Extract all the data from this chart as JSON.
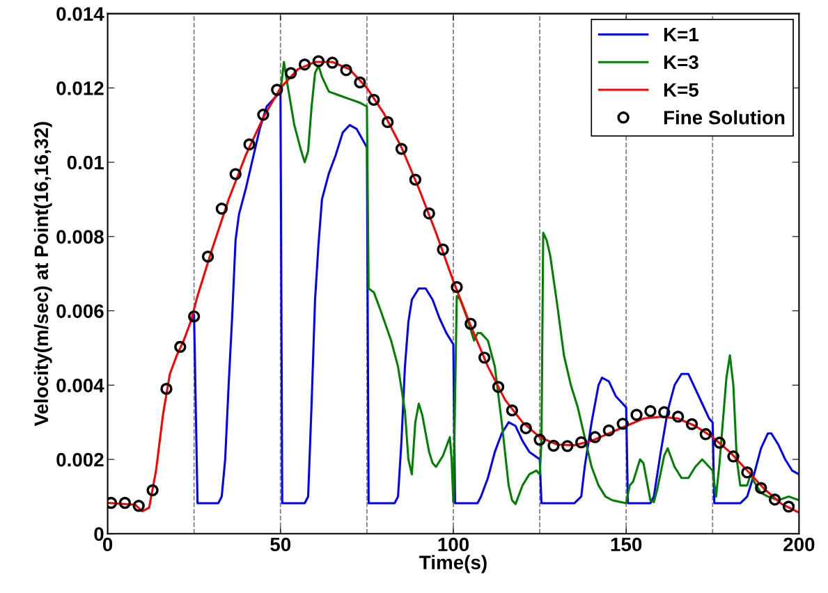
{
  "chart_data": {
    "type": "line",
    "xlabel": "Time(s)",
    "ylabel": "Velocity(m/sec) at Point(16,16,32)",
    "xlim": [
      0,
      200
    ],
    "ylim": [
      0,
      0.014
    ],
    "xticks": [
      0,
      50,
      100,
      150,
      200
    ],
    "yticks": [
      0,
      0.002,
      0.004,
      0.006,
      0.008,
      0.01,
      0.012,
      0.014
    ],
    "grid": false,
    "legend": "top right",
    "line_style": "solid",
    "ref_lines": [
      {
        "axis": "x",
        "value": 25,
        "color": "#808080",
        "line_style": "dashed"
      },
      {
        "axis": "x",
        "value": 50,
        "color": "#808080",
        "line_style": "dashed"
      },
      {
        "axis": "x",
        "value": 75,
        "color": "#808080",
        "line_style": "dashed"
      },
      {
        "axis": "x",
        "value": 100,
        "color": "#808080",
        "line_style": "dashed"
      },
      {
        "axis": "x",
        "value": 125,
        "color": "#808080",
        "line_style": "dashed"
      },
      {
        "axis": "x",
        "value": 150,
        "color": "#808080",
        "line_style": "dashed"
      },
      {
        "axis": "x",
        "value": 175,
        "color": "#808080",
        "line_style": "dashed"
      }
    ],
    "series": [
      {
        "name": "K=1",
        "color": "#0000ff",
        "x": [
          24,
          25,
          26,
          32,
          33,
          34,
          35,
          36,
          37,
          38,
          40,
          42,
          44,
          46,
          48,
          50,
          50.5,
          57,
          58,
          59,
          60,
          61,
          62,
          64,
          66,
          68,
          70,
          72,
          75,
          75.5,
          83,
          84,
          85,
          86,
          87,
          88,
          90,
          92,
          94,
          96,
          98,
          100,
          100.5,
          107,
          108,
          110,
          112,
          114,
          116,
          118,
          120,
          122,
          125,
          125.5,
          135,
          137,
          138,
          140,
          142,
          143,
          145,
          147,
          149,
          150,
          150.5,
          157,
          158,
          160,
          162,
          164,
          166,
          168,
          170,
          172,
          174,
          175,
          175.5,
          183,
          185,
          187,
          189,
          191,
          192,
          194,
          196,
          198,
          200
        ],
        "values": [
          0.0057,
          0.0059,
          0.00082,
          0.00082,
          0.001,
          0.002,
          0.004,
          0.0058,
          0.0079,
          0.0086,
          0.0093,
          0.0101,
          0.0109,
          0.0115,
          0.0117,
          0.0119,
          0.00082,
          0.00082,
          0.001,
          0.0035,
          0.0063,
          0.0078,
          0.009,
          0.0097,
          0.0102,
          0.0108,
          0.011,
          0.0109,
          0.0104,
          0.00082,
          0.00082,
          0.001,
          0.0025,
          0.0045,
          0.0057,
          0.0063,
          0.0066,
          0.0066,
          0.0063,
          0.0058,
          0.0054,
          0.0051,
          0.00082,
          0.00082,
          0.001,
          0.0015,
          0.0022,
          0.0027,
          0.003,
          0.0029,
          0.0025,
          0.0022,
          0.002,
          0.00082,
          0.00082,
          0.001,
          0.0018,
          0.003,
          0.004,
          0.0042,
          0.0041,
          0.0037,
          0.0035,
          0.0034,
          0.00082,
          0.00082,
          0.001,
          0.0022,
          0.0033,
          0.004,
          0.0043,
          0.0043,
          0.0039,
          0.0035,
          0.0031,
          0.003,
          0.00082,
          0.00082,
          0.001,
          0.0016,
          0.0023,
          0.0027,
          0.0027,
          0.0024,
          0.002,
          0.0017,
          0.0016
        ]
      },
      {
        "name": "K=3",
        "color": "#008000",
        "x": [
          50,
          51,
          52,
          54,
          56,
          57,
          58,
          59,
          60,
          61,
          62,
          64,
          67,
          70,
          73,
          75,
          75.5,
          77,
          79,
          82,
          84,
          86,
          87,
          88,
          89,
          90,
          91,
          93,
          94,
          95,
          97,
          99,
          99.5,
          100,
          101,
          102,
          104,
          106,
          107,
          108,
          110,
          112,
          114,
          116,
          117,
          118,
          120,
          122,
          124,
          125,
          125.5,
          126,
          127,
          128,
          130,
          132,
          134,
          136,
          138,
          140,
          142,
          144,
          146,
          150,
          151,
          152,
          154,
          155,
          157,
          158,
          159,
          161,
          162,
          164,
          166,
          168,
          170,
          172,
          174,
          175,
          176,
          177,
          179,
          180,
          181,
          182,
          183,
          185,
          186,
          187,
          189,
          191,
          194,
          197,
          200
        ],
        "values": [
          0.0119,
          0.0127,
          0.0121,
          0.011,
          0.0103,
          0.01,
          0.0103,
          0.0115,
          0.0124,
          0.0126,
          0.0123,
          0.0119,
          0.0118,
          0.0117,
          0.0116,
          0.0115,
          0.0066,
          0.0065,
          0.006,
          0.0052,
          0.0045,
          0.0033,
          0.002,
          0.0016,
          0.003,
          0.0035,
          0.0032,
          0.0022,
          0.0019,
          0.0018,
          0.0021,
          0.0026,
          0.002,
          0.00085,
          0.0064,
          0.0063,
          0.0058,
          0.0052,
          0.0054,
          0.0054,
          0.0052,
          0.0045,
          0.003,
          0.0013,
          0.0009,
          0.0008,
          0.0013,
          0.0016,
          0.0017,
          0.0016,
          0.0025,
          0.0081,
          0.0079,
          0.0075,
          0.0062,
          0.0048,
          0.004,
          0.0034,
          0.0026,
          0.0018,
          0.0013,
          0.001,
          0.0009,
          0.00082,
          0.0013,
          0.0014,
          0.002,
          0.0019,
          0.0009,
          0.00085,
          0.0012,
          0.0021,
          0.0023,
          0.0018,
          0.0015,
          0.0015,
          0.0018,
          0.002,
          0.0018,
          0.0017,
          0.001,
          0.0019,
          0.0042,
          0.0048,
          0.004,
          0.002,
          0.0013,
          0.0013,
          0.0016,
          0.0014,
          0.0011,
          0.001,
          0.0009,
          0.001,
          0.0009
        ]
      },
      {
        "name": "K=5",
        "color": "#ff0000",
        "x": [
          0,
          8,
          10,
          12,
          14,
          16,
          18,
          20,
          22,
          24,
          26,
          30,
          35,
          40,
          45,
          50,
          55,
          60,
          65,
          70,
          75,
          80,
          85,
          90,
          95,
          100,
          105,
          110,
          115,
          120,
          125,
          130,
          135,
          140,
          145,
          150,
          155,
          160,
          165,
          170,
          175,
          180,
          185,
          190,
          195,
          200
        ],
        "values": [
          0.00083,
          0.00078,
          0.0006,
          0.0007,
          0.0017,
          0.0032,
          0.0043,
          0.0048,
          0.0052,
          0.0057,
          0.0064,
          0.0076,
          0.009,
          0.0102,
          0.0112,
          0.012,
          0.0125,
          0.0127,
          0.0127,
          0.0125,
          0.012,
          0.0113,
          0.0104,
          0.0093,
          0.0081,
          0.0068,
          0.0056,
          0.0045,
          0.0036,
          0.003,
          0.0026,
          0.0024,
          0.00238,
          0.0025,
          0.0027,
          0.0029,
          0.0031,
          0.00315,
          0.0031,
          0.0029,
          0.0026,
          0.0022,
          0.0017,
          0.0012,
          0.0008,
          0.00057
        ]
      },
      {
        "name": "Fine Solution",
        "type": "scatter",
        "marker": "circle",
        "color": "#000000",
        "x": [
          1,
          5,
          9,
          13,
          17,
          21,
          25,
          29,
          33,
          37,
          41,
          45,
          49,
          53,
          57,
          61,
          65,
          69,
          73,
          77,
          81,
          85,
          89,
          93,
          97,
          101,
          105,
          109,
          113,
          117,
          121,
          125,
          129,
          133,
          137,
          141,
          145,
          149,
          153,
          157,
          161,
          165,
          169,
          173,
          177,
          181,
          185,
          189,
          193,
          197
        ],
        "values": [
          0.00083,
          0.00083,
          0.00075,
          0.00117,
          0.0039,
          0.00503,
          0.00585,
          0.00746,
          0.00875,
          0.00968,
          0.01048,
          0.01128,
          0.01195,
          0.0124,
          0.01263,
          0.01272,
          0.01268,
          0.01248,
          0.01215,
          0.01168,
          0.01108,
          0.01036,
          0.00953,
          0.00862,
          0.00765,
          0.00664,
          0.00565,
          0.00474,
          0.00395,
          0.00332,
          0.00284,
          0.00253,
          0.00237,
          0.00236,
          0.00246,
          0.0026,
          0.00278,
          0.00296,
          0.0032,
          0.0033,
          0.00327,
          0.00315,
          0.00295,
          0.00268,
          0.00245,
          0.00208,
          0.00165,
          0.00123,
          0.00092,
          0.00073
        ]
      }
    ]
  }
}
